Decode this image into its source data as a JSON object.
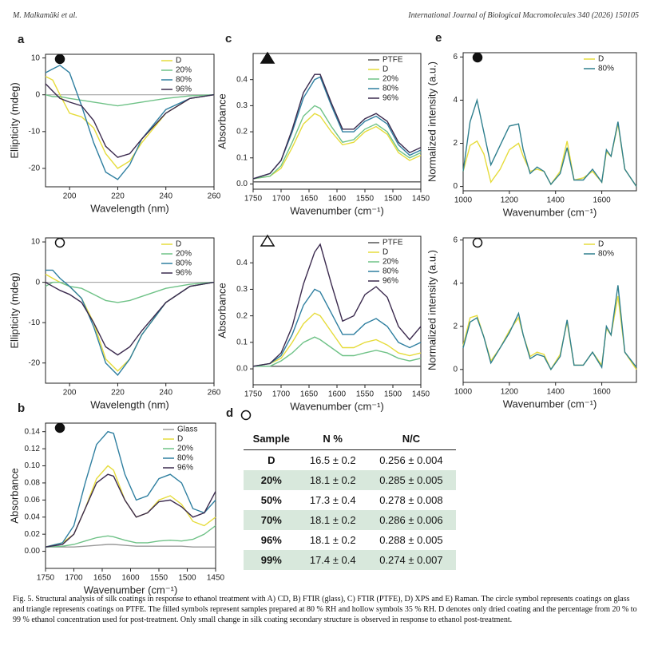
{
  "header": {
    "left": "M. Malkamäki et al.",
    "right": "International Journal of Biological Macromolecules 340 (2026) 150105"
  },
  "chart_data": [
    {
      "type": "line",
      "panel": "a",
      "marker": "filled circle",
      "x_label": "Wavelength (nm)",
      "y_label": "Ellipticity (mdeg)",
      "legend": "upper right",
      "xlim": [
        190,
        260
      ],
      "xticks": [
        200,
        220,
        240,
        260
      ],
      "ylim": [
        -25,
        11
      ],
      "yticks": [
        -20,
        -10,
        0,
        10
      ],
      "x": [
        190,
        193,
        196,
        200,
        205,
        210,
        215,
        220,
        225,
        230,
        240,
        250,
        260
      ],
      "series": [
        {
          "name": "D",
          "color": "#e6dc3c",
          "values": [
            5,
            4,
            0,
            -5,
            -6,
            -9,
            -16,
            -20,
            -18,
            -13,
            -5,
            -1,
            0
          ]
        },
        {
          "name": "20%",
          "color": "#6fc287",
          "values": [
            0,
            -0.5,
            -0.5,
            -1,
            -1.5,
            -2,
            -2.5,
            -3,
            -2.5,
            -2,
            -1,
            -0.3,
            0
          ]
        },
        {
          "name": "80%",
          "color": "#2f7fa0",
          "values": [
            6,
            7,
            8,
            6,
            -3,
            -13,
            -21,
            -23,
            -19,
            -12,
            -4,
            -1,
            0
          ]
        },
        {
          "name": "96%",
          "color": "#3b2a4e",
          "values": [
            3,
            1,
            -1,
            -2,
            -3,
            -7,
            -14,
            -17,
            -16,
            -12,
            -5,
            -1,
            0
          ]
        }
      ]
    },
    {
      "type": "line",
      "marker": "hollow circle",
      "x_label": "Wavelength (nm)",
      "y_label": "Ellipticity (mdeg)",
      "legend": "upper right",
      "xlim": [
        190,
        260
      ],
      "xticks": [
        200,
        220,
        240,
        260
      ],
      "ylim": [
        -25,
        11
      ],
      "yticks": [
        -20,
        -10,
        0,
        10
      ],
      "x": [
        190,
        193,
        196,
        200,
        205,
        210,
        215,
        220,
        225,
        230,
        240,
        250,
        260
      ],
      "series": [
        {
          "name": "D",
          "color": "#e6dc3c",
          "values": [
            2,
            1,
            0,
            -1,
            -4,
            -10,
            -19,
            -22,
            -19,
            -13,
            -5,
            -1,
            0
          ]
        },
        {
          "name": "20%",
          "color": "#6fc287",
          "values": [
            -1,
            0,
            0,
            -1,
            -1.5,
            -3,
            -4.5,
            -5,
            -4.5,
            -3.5,
            -1.5,
            -0.5,
            0
          ]
        },
        {
          "name": "80%",
          "color": "#2f7fa0",
          "values": [
            3,
            3,
            1,
            -1,
            -4,
            -11,
            -20,
            -23,
            -19,
            -13,
            -5,
            -1,
            0
          ]
        },
        {
          "name": "96%",
          "color": "#3b2a4e",
          "values": [
            0,
            -1,
            -2,
            -3,
            -5,
            -10,
            -16,
            -18,
            -16,
            -12,
            -5,
            -1,
            0
          ]
        }
      ]
    },
    {
      "type": "line",
      "panel": "b",
      "marker": "filled circle",
      "x_label": "Wavenumber (cm⁻¹)",
      "y_label": "Absorbance",
      "legend": "upper right",
      "xlim": [
        1750,
        1450
      ],
      "xticks": [
        1750,
        1700,
        1650,
        1600,
        1550,
        1500,
        1450
      ],
      "ylim": [
        -0.02,
        0.15
      ],
      "yticks": [
        {
          "value": 0,
          "label": "0.00"
        },
        0.02,
        0.04,
        0.06,
        0.08,
        {
          "value": 0.1,
          "label": "0.10"
        },
        0.12,
        0.14
      ],
      "x": [
        1750,
        1720,
        1700,
        1680,
        1660,
        1640,
        1630,
        1610,
        1590,
        1570,
        1550,
        1530,
        1510,
        1490,
        1470,
        1450
      ],
      "series": [
        {
          "name": "Glass",
          "color": "#9a9a9a",
          "values": [
            0.005,
            0.005,
            0.005,
            0.006,
            0.007,
            0.008,
            0.008,
            0.007,
            0.006,
            0.006,
            0.006,
            0.006,
            0.006,
            0.005,
            0.005,
            0.005
          ]
        },
        {
          "name": "D",
          "color": "#e6dc3c",
          "values": [
            0.005,
            0.01,
            0.02,
            0.05,
            0.085,
            0.1,
            0.095,
            0.06,
            0.04,
            0.045,
            0.06,
            0.065,
            0.055,
            0.035,
            0.03,
            0.04
          ]
        },
        {
          "name": "20%",
          "color": "#6fc287",
          "values": [
            0.005,
            0.006,
            0.008,
            0.012,
            0.016,
            0.018,
            0.017,
            0.013,
            0.01,
            0.01,
            0.012,
            0.013,
            0.012,
            0.014,
            0.02,
            0.03
          ]
        },
        {
          "name": "80%",
          "color": "#2f7fa0",
          "values": [
            0.005,
            0.01,
            0.03,
            0.08,
            0.125,
            0.14,
            0.138,
            0.09,
            0.06,
            0.065,
            0.085,
            0.09,
            0.08,
            0.05,
            0.045,
            0.06
          ]
        },
        {
          "name": "96%",
          "color": "#3b2a4e",
          "values": [
            0.005,
            0.008,
            0.02,
            0.05,
            0.08,
            0.09,
            0.088,
            0.06,
            0.04,
            0.045,
            0.058,
            0.06,
            0.052,
            0.04,
            0.045,
            0.07
          ]
        }
      ]
    },
    {
      "type": "line",
      "panel": "c",
      "marker": "filled triangle",
      "x_label": "Wavenumber (cm⁻¹)",
      "y_label": "Absorbance",
      "legend": "upper right",
      "xlim": [
        1750,
        1450
      ],
      "xticks": [
        1750,
        1700,
        1650,
        1600,
        1550,
        1500,
        1450
      ],
      "ylim": [
        -0.02,
        0.5
      ],
      "yticks": [
        {
          "value": 0,
          "label": "0.0"
        },
        0.1,
        0.2,
        0.3,
        0.4
      ],
      "x": [
        1750,
        1720,
        1700,
        1680,
        1660,
        1640,
        1630,
        1610,
        1590,
        1570,
        1550,
        1530,
        1510,
        1490,
        1470,
        1450
      ],
      "series": [
        {
          "name": "PTFE",
          "color": "#555555",
          "values": [
            0.008,
            0.008,
            0.008,
            0.008,
            0.008,
            0.008,
            0.008,
            0.008,
            0.008,
            0.008,
            0.008,
            0.008,
            0.008,
            0.008,
            0.008,
            0.008
          ]
        },
        {
          "name": "D",
          "color": "#e6dc3c",
          "values": [
            0.02,
            0.03,
            0.06,
            0.14,
            0.23,
            0.27,
            0.26,
            0.2,
            0.15,
            0.16,
            0.2,
            0.22,
            0.19,
            0.12,
            0.09,
            0.11
          ]
        },
        {
          "name": "20%",
          "color": "#6fc287",
          "values": [
            0.02,
            0.03,
            0.07,
            0.16,
            0.26,
            0.3,
            0.29,
            0.22,
            0.16,
            0.17,
            0.21,
            0.23,
            0.2,
            0.13,
            0.1,
            0.12
          ]
        },
        {
          "name": "80%",
          "color": "#2f7fa0",
          "values": [
            0.02,
            0.04,
            0.09,
            0.2,
            0.33,
            0.4,
            0.41,
            0.3,
            0.2,
            0.2,
            0.24,
            0.26,
            0.23,
            0.15,
            0.11,
            0.13
          ]
        },
        {
          "name": "96%",
          "color": "#3b2a4e",
          "values": [
            0.02,
            0.04,
            0.09,
            0.21,
            0.35,
            0.42,
            0.42,
            0.31,
            0.21,
            0.21,
            0.25,
            0.27,
            0.24,
            0.16,
            0.12,
            0.14
          ]
        }
      ]
    },
    {
      "type": "line",
      "marker": "hollow triangle",
      "x_label": "Wavenumber (cm⁻¹)",
      "y_label": "Absorbance",
      "legend": "upper right",
      "xlim": [
        1750,
        1450
      ],
      "xticks": [
        1750,
        1700,
        1650,
        1600,
        1550,
        1500,
        1450
      ],
      "ylim": [
        -0.06,
        0.5
      ],
      "yticks": [
        {
          "value": 0,
          "label": "0.0"
        },
        0.1,
        0.2,
        0.3,
        0.4
      ],
      "x": [
        1750,
        1720,
        1700,
        1680,
        1660,
        1640,
        1630,
        1610,
        1590,
        1570,
        1550,
        1530,
        1510,
        1490,
        1470,
        1450
      ],
      "series": [
        {
          "name": "PTFE",
          "color": "#555555",
          "values": [
            0.01,
            0.01,
            0.01,
            0.01,
            0.01,
            0.01,
            0.01,
            0.01,
            0.01,
            0.01,
            0.01,
            0.01,
            0.01,
            0.01,
            0.01,
            0.01
          ]
        },
        {
          "name": "D",
          "color": "#e6dc3c",
          "values": [
            0.01,
            0.02,
            0.04,
            0.1,
            0.17,
            0.21,
            0.2,
            0.14,
            0.08,
            0.08,
            0.1,
            0.11,
            0.09,
            0.06,
            0.05,
            0.06
          ]
        },
        {
          "name": "20%",
          "color": "#6fc287",
          "values": [
            0.01,
            0.01,
            0.03,
            0.06,
            0.1,
            0.12,
            0.11,
            0.08,
            0.05,
            0.05,
            0.06,
            0.07,
            0.06,
            0.04,
            0.03,
            0.04
          ]
        },
        {
          "name": "80%",
          "color": "#2f7fa0",
          "values": [
            0.01,
            0.02,
            0.05,
            0.13,
            0.24,
            0.3,
            0.29,
            0.21,
            0.13,
            0.13,
            0.17,
            0.19,
            0.16,
            0.1,
            0.08,
            0.1
          ]
        },
        {
          "name": "96%",
          "color": "#3b2a4e",
          "values": [
            0.01,
            0.02,
            0.06,
            0.16,
            0.32,
            0.44,
            0.47,
            0.32,
            0.18,
            0.2,
            0.28,
            0.31,
            0.27,
            0.16,
            0.11,
            0.16
          ]
        }
      ]
    },
    {
      "type": "line",
      "panel": "e",
      "marker": "filled circle",
      "x_label": "Wavenumber (cm⁻¹)",
      "y_label": "Normalized intensity (a.u.)",
      "legend": "upper right",
      "xlim": [
        1000,
        1750
      ],
      "xticks": [
        1000,
        1200,
        1400,
        1600
      ],
      "ylim": [
        -0.2,
        6.2
      ],
      "yticks": [
        0,
        2,
        4,
        6
      ],
      "x": [
        1000,
        1030,
        1060,
        1090,
        1120,
        1160,
        1200,
        1240,
        1260,
        1290,
        1320,
        1350,
        1380,
        1420,
        1450,
        1480,
        1520,
        1560,
        1600,
        1620,
        1640,
        1670,
        1700,
        1750
      ],
      "series": [
        {
          "name": "D",
          "color": "#e6dc3c",
          "values": [
            0.7,
            1.9,
            2.1,
            1.5,
            0.2,
            0.8,
            1.7,
            2.0,
            1.4,
            0.7,
            0.8,
            0.7,
            0.1,
            0.7,
            2.1,
            0.3,
            0.4,
            0.7,
            0.2,
            1.6,
            1.4,
            2.9,
            0.8,
            0
          ]
        },
        {
          "name": "80%",
          "color": "#2f7f8e",
          "values": [
            0.7,
            3.0,
            4.0,
            2.5,
            1.0,
            1.9,
            2.8,
            2.9,
            1.7,
            0.6,
            0.9,
            0.7,
            0.1,
            0.6,
            1.8,
            0.3,
            0.3,
            0.8,
            0.2,
            1.7,
            1.4,
            3.0,
            0.8,
            0
          ]
        }
      ]
    },
    {
      "type": "line",
      "marker": "hollow circle",
      "x_label": "Wavenumber (cm⁻¹)",
      "y_label": "Normalized intensity (a.u.)",
      "legend": "upper right",
      "xlim": [
        1000,
        1750
      ],
      "xticks": [
        1000,
        1200,
        1400,
        1600
      ],
      "ylim": [
        -0.6,
        6.1
      ],
      "yticks": [
        0,
        2,
        4,
        6
      ],
      "x": [
        1000,
        1030,
        1060,
        1090,
        1120,
        1160,
        1200,
        1240,
        1260,
        1290,
        1320,
        1350,
        1380,
        1420,
        1450,
        1480,
        1520,
        1560,
        1600,
        1620,
        1640,
        1670,
        1700,
        1750
      ],
      "series": [
        {
          "name": "D",
          "color": "#e6dc3c",
          "values": [
            1.1,
            2.4,
            2.5,
            1.5,
            0.4,
            1.0,
            1.8,
            2.4,
            1.6,
            0.6,
            0.8,
            0.7,
            0.0,
            0.7,
            2.2,
            0.2,
            0.2,
            0.8,
            0.2,
            1.9,
            1.6,
            3.4,
            0.8,
            0
          ]
        },
        {
          "name": "80%",
          "color": "#2f7f8e",
          "values": [
            1.0,
            2.2,
            2.4,
            1.5,
            0.3,
            1.0,
            1.7,
            2.6,
            1.6,
            0.5,
            0.7,
            0.6,
            0.0,
            0.6,
            2.3,
            0.2,
            0.2,
            0.8,
            0.1,
            2.0,
            1.6,
            3.9,
            0.8,
            0.1
          ]
        }
      ]
    }
  ],
  "table": {
    "panel": "d",
    "marker": "hollow circle",
    "columns": [
      "Sample",
      "N %",
      "N/C"
    ],
    "rows": [
      [
        "D",
        "16.5 ± 0.2",
        "0.256 ± 0.004"
      ],
      [
        "20%",
        "18.1 ± 0.2",
        "0.285 ± 0.005"
      ],
      [
        "50%",
        "17.3 ± 0.4",
        "0.278 ± 0.008"
      ],
      [
        "70%",
        "18.1 ± 0.2",
        "0.286 ± 0.006"
      ],
      [
        "96%",
        "18.1 ± 0.2",
        "0.288 ± 0.005"
      ],
      [
        "99%",
        "17.4 ± 0.4",
        "0.274 ± 0.007"
      ]
    ]
  },
  "caption": "Fig. 5. Structural analysis of silk coatings in response to ethanol treatment with A) CD, B) FTIR (glass), C) FTIR (PTFE), D) XPS and E) Raman. The circle symbol represents coatings on glass and triangle represents coatings on PTFE. The filled symbols represent samples prepared at 80 % RH and hollow symbols 35 % RH. D denotes only dried coating and the percentage from 20 % to 99 % ethanol concentration used for post-treatment. Only small change in silk coating secondary structure is observed in response to ethanol post-treatment."
}
